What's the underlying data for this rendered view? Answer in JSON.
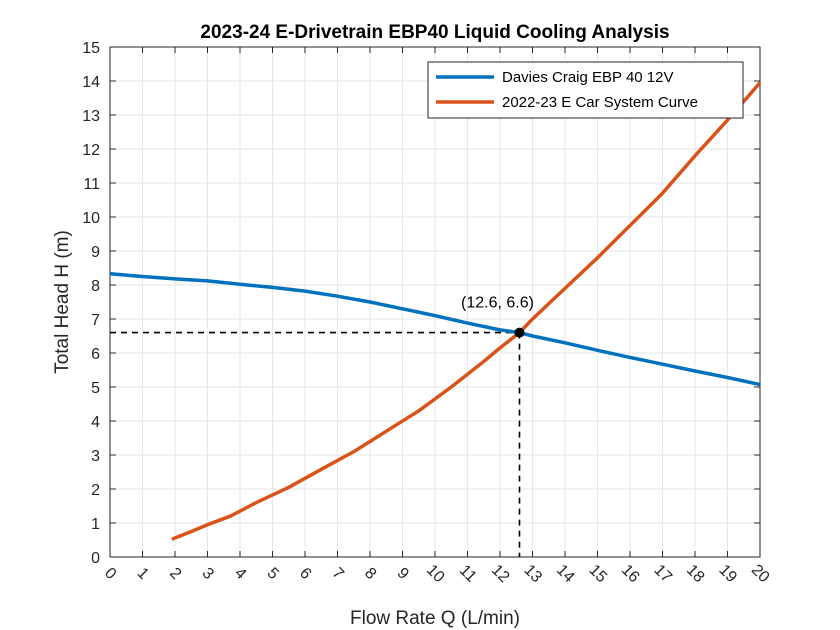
{
  "chart_data": {
    "type": "line",
    "title": "2023-24 E-Drivetrain EBP40 Liquid Cooling Analysis",
    "xlabel": "Flow Rate Q (L/min)",
    "ylabel": "Total Head H (m)",
    "xlim": [
      0,
      20
    ],
    "ylim": [
      0,
      15
    ],
    "xticks": [
      "0",
      "1",
      "2",
      "3",
      "4",
      "5",
      "6",
      "7",
      "8",
      "9",
      "10",
      "11",
      "12",
      "13",
      "14",
      "15",
      "16",
      "17",
      "18",
      "19",
      "20"
    ],
    "yticks": [
      "0",
      "1",
      "2",
      "3",
      "4",
      "5",
      "6",
      "7",
      "8",
      "9",
      "10",
      "11",
      "12",
      "13",
      "14",
      "15"
    ],
    "grid": true,
    "legend_position": "top-right",
    "series": [
      {
        "name": "Davies Craig EBP 40 12V",
        "color": "#0072BD",
        "x": [
          0,
          1,
          2,
          3,
          4,
          5,
          6,
          7,
          8,
          9,
          10,
          11,
          12,
          12.6,
          13,
          14,
          15,
          16,
          17,
          18,
          19,
          20
        ],
        "y": [
          8.33,
          8.25,
          8.18,
          8.12,
          8.02,
          7.93,
          7.82,
          7.67,
          7.5,
          7.3,
          7.1,
          6.88,
          6.68,
          6.6,
          6.5,
          6.3,
          6.08,
          5.87,
          5.67,
          5.47,
          5.28,
          5.07
        ]
      },
      {
        "name": "2022-23 E Car System Curve",
        "color": "#D95319",
        "x": [
          1.9,
          2.5,
          3,
          3.7,
          4.5,
          5.5,
          6.5,
          7.5,
          8.5,
          9.5,
          10.5,
          11.5,
          12,
          12.6,
          13,
          14,
          15,
          16,
          17,
          18,
          19,
          20
        ],
        "y": [
          0.52,
          0.75,
          0.95,
          1.2,
          1.6,
          2.05,
          2.58,
          3.1,
          3.7,
          4.3,
          5.0,
          5.75,
          6.15,
          6.6,
          7.0,
          7.9,
          8.8,
          9.75,
          10.7,
          11.8,
          12.85,
          13.95
        ]
      }
    ],
    "annotations": [
      {
        "type": "point",
        "x": 12.6,
        "y": 6.6,
        "label": "(12.6, 6.6)"
      }
    ]
  }
}
